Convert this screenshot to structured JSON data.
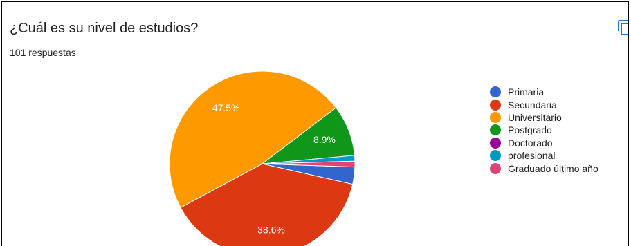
{
  "header": {
    "title": "¿Cuál es su nivel de estudios?",
    "responses": "101 respuestas"
  },
  "toolbar": {
    "copy_icon": "copy-icon"
  },
  "chart_data": {
    "type": "pie",
    "title": "¿Cuál es su nivel de estudios?",
    "total_responses": 101,
    "legend_position": "right",
    "slices": [
      {
        "label": "Primaria",
        "value": 3.0,
        "display": "",
        "color": "#3366CC"
      },
      {
        "label": "Secundaria",
        "value": 38.6,
        "display": "38.6%",
        "color": "#DC3912"
      },
      {
        "label": "Universitario",
        "value": 47.5,
        "display": "47.5%",
        "color": "#FF9900"
      },
      {
        "label": "Postgrado",
        "value": 8.9,
        "display": "8.9%",
        "color": "#109618"
      },
      {
        "label": "Doctorado",
        "value": 0.0,
        "display": "",
        "color": "#990099"
      },
      {
        "label": "profesional",
        "value": 1.0,
        "display": "",
        "color": "#0099C6"
      },
      {
        "label": "Graduado último año",
        "value": 1.0,
        "display": "",
        "color": "#DD4477"
      }
    ]
  }
}
